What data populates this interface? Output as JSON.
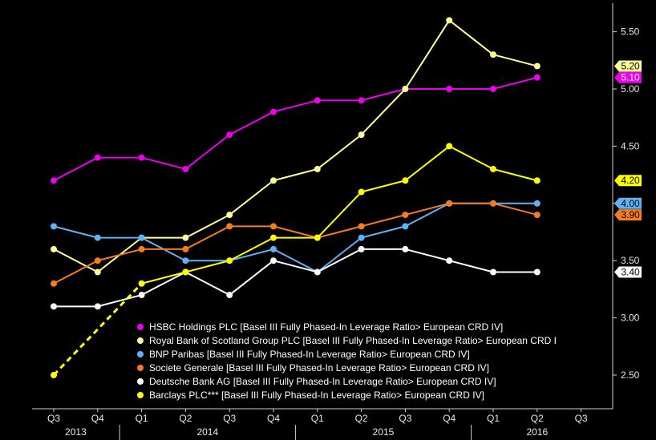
{
  "chart_data": {
    "type": "line",
    "categories": [
      "Q3",
      "Q4",
      "Q1",
      "Q2",
      "Q3",
      "Q4",
      "Q1",
      "Q2",
      "Q3",
      "Q4",
      "Q1",
      "Q2",
      "Q3"
    ],
    "years": [
      {
        "label": "2013",
        "from": 0,
        "to": 1
      },
      {
        "label": "2014",
        "from": 2,
        "to": 5
      },
      {
        "label": "2015",
        "from": 6,
        "to": 9
      },
      {
        "label": "2016",
        "from": 10,
        "to": 12
      }
    ],
    "ylim": [
      2.2,
      5.72
    ],
    "yticks": [
      "2.50",
      "3.00",
      "3.50",
      "4.00",
      "4.50",
      "5.00",
      "5.50"
    ],
    "ytick_values": [
      2.5,
      3.0,
      3.5,
      4.0,
      4.5,
      5.0,
      5.5
    ],
    "legend_position": "bottom-center",
    "grid": false,
    "series": [
      {
        "name": "HSBC Holdings PLC [Basel III Fully Phased-In Leverage Ratio> European CRD IV]",
        "color": "#ee00ee",
        "tag_text": "#ffffff",
        "last_label": "5.10",
        "dashed_until": -1,
        "values": [
          4.2,
          4.4,
          4.4,
          4.3,
          4.6,
          4.8,
          4.9,
          4.9,
          5.0,
          5.0,
          5.0,
          5.1,
          null
        ]
      },
      {
        "name": "Royal Bank of Scotland Group PLC [Basel III Fully Phased-In Leverage Ratio> European CRD I",
        "color": "#ffff99",
        "tag_text": "#000000",
        "last_label": "5.20",
        "dashed_until": -1,
        "values": [
          3.6,
          3.4,
          3.7,
          3.7,
          3.9,
          4.2,
          4.3,
          4.6,
          5.0,
          5.6,
          5.3,
          5.2,
          null
        ]
      },
      {
        "name": "BNP Paribas [Basel III Fully Phased-In Leverage Ratio> European CRD IV]",
        "color": "#5fb3f5",
        "tag_text": "#000000",
        "last_label": "4.00",
        "dashed_until": -1,
        "values": [
          3.8,
          3.7,
          3.7,
          3.5,
          3.5,
          3.6,
          3.4,
          3.7,
          3.8,
          4.0,
          4.0,
          4.0,
          null
        ]
      },
      {
        "name": "Societe Generale [Basel III Fully Phased-In Leverage Ratio> European CRD IV]",
        "color": "#f57c1f",
        "tag_text": "#000000",
        "last_label": "3.90",
        "dashed_until": -1,
        "values": [
          3.3,
          3.5,
          3.6,
          3.6,
          3.8,
          3.8,
          3.7,
          3.8,
          3.9,
          4.0,
          4.0,
          3.9,
          null
        ]
      },
      {
        "name": "Deutsche Bank AG [Basel III Fully Phased-In Leverage Ratio> European CRD IV]",
        "color": "#ffffff",
        "tag_text": "#000000",
        "last_label": "3.40",
        "dashed_until": -1,
        "values": [
          3.1,
          3.1,
          3.2,
          3.4,
          3.2,
          3.5,
          3.4,
          3.6,
          3.6,
          3.5,
          3.4,
          3.4,
          null
        ]
      },
      {
        "name": "Barclays PLC*** [Basel III Fully Phased-In Leverage Ratio> European CRD IV]",
        "color": "#ffff00",
        "tag_text": "#000000",
        "last_label": "4.20",
        "dashed_until": 2,
        "values": [
          2.5,
          null,
          3.3,
          3.4,
          3.5,
          3.7,
          3.7,
          4.1,
          4.2,
          4.5,
          4.3,
          4.2,
          null
        ]
      }
    ]
  }
}
